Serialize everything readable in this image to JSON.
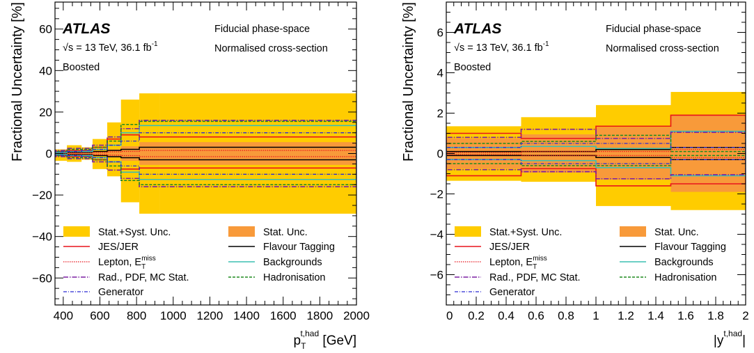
{
  "chart_data": [
    {
      "type": "area",
      "variable": "pT",
      "experiment": "ATLAS",
      "energy_label": "√s = 13 TeV, 36.1 fb⁻¹",
      "sqrt_symbol": "√s",
      "energy_text": " = 13 TeV, 36.1 fb",
      "lumi_sup": "-1",
      "selection": "Boosted",
      "phase_space": "Fiducial phase-space",
      "cross_section": "Normalised cross-section",
      "ylabel": "Fractional Uncertainty [%]",
      "xlabel": "p_T^{t,had} [GeV]",
      "xlabel_main": "p",
      "xlabel_sub": "T",
      "xlabel_sup": "t,had",
      "xlabel_unit": " [GeV]",
      "xlim": [
        355,
        2000
      ],
      "ylim": [
        -73,
        73
      ],
      "xticks": [
        400,
        600,
        800,
        1000,
        1200,
        1400,
        1600,
        1800,
        2000
      ],
      "yticks": [
        -60,
        -40,
        -20,
        0,
        20,
        40,
        60
      ],
      "bins": [
        355,
        420,
        500,
        560,
        640,
        715,
        815,
        925,
        2000
      ],
      "series": [
        {
          "name": "Stat.+Syst. Unc.",
          "color": "#ffcc00",
          "up": [
            2,
            4,
            3,
            7,
            15,
            26,
            29,
            29
          ],
          "down": [
            -3.5,
            -4,
            -3,
            -7.5,
            -11,
            -23.5,
            -29,
            -29
          ]
        },
        {
          "name": "Stat. Unc.",
          "color": "#f89a3a",
          "up": [
            0.5,
            0.5,
            0.7,
            1.2,
            2,
            3.5,
            5.5,
            5.5
          ],
          "down": [
            -0.5,
            -0.5,
            -0.7,
            -1.2,
            -2,
            -3.5,
            -5.5,
            -5.5
          ]
        },
        {
          "name": "JES/JER",
          "color": "#e8141c",
          "up": [
            1,
            1.5,
            1.5,
            3,
            7,
            9,
            8,
            8
          ],
          "down": [
            -1,
            -1.5,
            -1.5,
            -3,
            -4,
            -7.5,
            -7,
            -7
          ]
        },
        {
          "name": "Flavour Tagging",
          "color": "#000000",
          "up": [
            0.3,
            0.5,
            0.5,
            1,
            1.5,
            2,
            3,
            3
          ],
          "down": [
            -0.3,
            -0.5,
            -0.5,
            -1,
            -1.5,
            -2,
            -3,
            -3
          ]
        },
        {
          "name": "Lepton, E_T^miss",
          "color": "#e8141c",
          "up": [
            0.3,
            0.3,
            0.4,
            0.5,
            0.8,
            1,
            1.5,
            1.5
          ],
          "down": [
            -0.3,
            -0.3,
            -0.4,
            -0.5,
            -0.8,
            -1,
            -1.5,
            -1.5
          ]
        },
        {
          "name": "Backgrounds",
          "color": "#3bbfb2",
          "up": [
            0.5,
            1,
            1,
            2,
            4,
            10,
            13.5,
            13.5
          ],
          "down": [
            -0.5,
            -1,
            -1,
            -2,
            -4,
            -9,
            -12.5,
            -12.5
          ]
        },
        {
          "name": "Rad., PDF, MC Stat.",
          "color": "#7b1fa2",
          "up": [
            1.5,
            2.5,
            2.5,
            4,
            8,
            12,
            16,
            16
          ],
          "down": [
            -1.5,
            -2.5,
            -2.5,
            -4,
            -8,
            -12,
            -16,
            -16
          ]
        },
        {
          "name": "Hadronisation",
          "color": "#1f8a1f",
          "up": [
            1,
            2,
            2,
            3,
            6,
            14,
            15.5,
            15.5
          ],
          "down": [
            -1,
            -2,
            -2,
            -3,
            -6,
            -13,
            -15,
            -15
          ]
        },
        {
          "name": "Generator",
          "color": "#2b2bd4",
          "up": [
            0.8,
            1,
            1.5,
            2,
            4,
            6,
            10,
            10
          ],
          "down": [
            -0.8,
            -1,
            -1.5,
            -2,
            -4,
            -6,
            -10,
            -10
          ]
        }
      ]
    },
    {
      "type": "area",
      "variable": "y",
      "experiment": "ATLAS",
      "energy_label": "√s = 13 TeV, 36.1 fb⁻¹",
      "sqrt_symbol": "√s",
      "energy_text": " = 13 TeV, 36.1 fb",
      "lumi_sup": "-1",
      "selection": "Boosted",
      "phase_space": "Fiducial phase-space",
      "cross_section": "Normalised cross-section",
      "ylabel": "Fractional Uncertainty [%]",
      "xlabel": "|y^{t,had}|",
      "xlabel_main": "|y",
      "xlabel_sup": "t,had",
      "xlabel_end": "|",
      "xlim": [
        0,
        2
      ],
      "ylim": [
        -7.5,
        7.5
      ],
      "xticks": [
        0,
        0.2,
        0.4,
        0.6,
        0.8,
        1,
        1.2,
        1.4,
        1.6,
        1.8,
        2
      ],
      "yticks": [
        -6,
        -4,
        -2,
        0,
        2,
        4,
        6
      ],
      "bins": [
        0,
        0.5,
        1,
        1.5,
        2
      ],
      "series": [
        {
          "name": "Stat.+Syst. Unc.",
          "color": "#ffcc00",
          "up": [
            1.35,
            1.8,
            2.4,
            3.05
          ],
          "down": [
            -1.35,
            -1.4,
            -2.6,
            -2.8
          ]
        },
        {
          "name": "Stat. Unc.",
          "color": "#f89a3a",
          "up": [
            0.75,
            0.95,
            1.3,
            1.9
          ],
          "down": [
            -0.75,
            -0.95,
            -1.3,
            -1.9
          ]
        },
        {
          "name": "JES/JER",
          "color": "#e8141c",
          "up": [
            1.0,
            0.75,
            1.35,
            1.9
          ],
          "down": [
            -1.1,
            -0.75,
            -1.6,
            -1.5
          ]
        },
        {
          "name": "Flavour Tagging",
          "color": "#000000",
          "up": [
            0.1,
            0.1,
            0.2,
            0.3
          ],
          "down": [
            -0.1,
            -0.1,
            -0.2,
            -0.3
          ]
        },
        {
          "name": "Lepton, E_T^miss",
          "color": "#e8141c",
          "up": [
            0.05,
            0.1,
            0.1,
            0.2
          ],
          "down": [
            -0.05,
            -0.1,
            -0.1,
            -0.2
          ]
        },
        {
          "name": "Backgrounds",
          "color": "#3bbfb2",
          "up": [
            0.3,
            0.35,
            0.25,
            1.1
          ],
          "down": [
            -0.3,
            -0.35,
            -0.7,
            -1.1
          ]
        },
        {
          "name": "Rad., PDF, MC Stat.",
          "color": "#7b1fa2",
          "up": [
            0.8,
            1.2,
            0.75,
            1.05
          ],
          "down": [
            -0.8,
            -0.9,
            -1.25,
            -1.05
          ]
        },
        {
          "name": "Hadronisation",
          "color": "#1f8a1f",
          "up": [
            0.5,
            0.6,
            0.9,
            0.1
          ],
          "down": [
            -0.5,
            -0.6,
            -0.6,
            -0.1
          ]
        },
        {
          "name": "Generator",
          "color": "#2b2bd4",
          "up": [
            0.3,
            0.5,
            0.5,
            0.3
          ],
          "down": [
            -0.3,
            -0.5,
            -0.5,
            -0.3
          ]
        }
      ]
    }
  ]
}
